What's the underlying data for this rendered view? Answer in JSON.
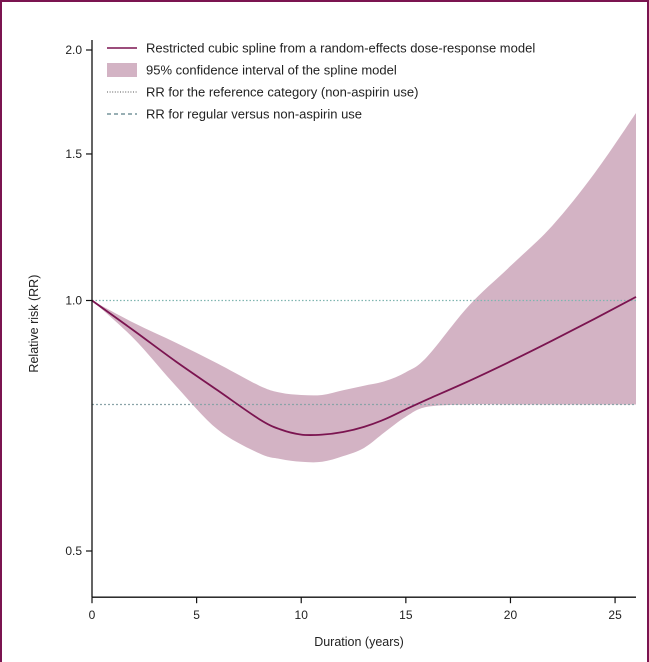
{
  "chart_data": {
    "type": "line",
    "title": "",
    "xlabel": "Duration (years)",
    "ylabel": "Relative risk (RR)",
    "xlim": [
      0,
      26
    ],
    "ylim": [
      0.44,
      2.0
    ],
    "y_scale": "log",
    "x_ticks": [
      0,
      5,
      10,
      15,
      20,
      25
    ],
    "x_tick_labels": [
      "0",
      "5",
      "10",
      "15",
      "20",
      "25"
    ],
    "y_ticks": [
      0.5,
      1.0,
      1.5,
      2.0
    ],
    "y_tick_labels": [
      "0.5",
      "1.0",
      "1.5",
      "2.0"
    ],
    "legend_position": "top-left",
    "legend": [
      "Restricted cubic spline from a random-effects dose-response model",
      "95% confidence interval of the spline model",
      "RR for the reference category (non-aspirin use)",
      "RR for regular versus non-aspirin use"
    ],
    "colors": {
      "spline": "#7b1450",
      "ci_band": "#d3b3c4",
      "reference_line": "#7fb5b0",
      "regular_line": "#8aa3a8",
      "frame": "#7b1450"
    },
    "series": [
      {
        "name": "Restricted cubic spline from a random-effects dose-response model",
        "x": [
          0,
          2,
          4,
          6,
          8,
          9,
          10,
          11,
          12,
          13,
          14,
          15,
          16,
          18,
          20,
          22,
          24,
          26
        ],
        "y": [
          1.0,
          0.92,
          0.845,
          0.78,
          0.72,
          0.7,
          0.69,
          0.69,
          0.695,
          0.705,
          0.72,
          0.74,
          0.76,
          0.8,
          0.845,
          0.895,
          0.95,
          1.01
        ]
      },
      {
        "name": "95% confidence interval of the spline model",
        "x": [
          0,
          2,
          4,
          6,
          8,
          9,
          10,
          11,
          12,
          13,
          14,
          15,
          16,
          18,
          20,
          22,
          24,
          26
        ],
        "lower": [
          1.0,
          0.9,
          0.79,
          0.7,
          0.655,
          0.645,
          0.64,
          0.64,
          0.65,
          0.665,
          0.695,
          0.725,
          0.745,
          0.75,
          0.75,
          0.75,
          0.75,
          0.75
        ],
        "upper": [
          1.0,
          0.94,
          0.89,
          0.84,
          0.79,
          0.775,
          0.77,
          0.77,
          0.78,
          0.79,
          0.8,
          0.82,
          0.855,
          0.985,
          1.1,
          1.23,
          1.42,
          1.68
        ]
      },
      {
        "name": "RR for the reference category (non-aspirin use)",
        "y_constant": 1.0
      },
      {
        "name": "RR for regular versus non-aspirin use",
        "y_constant": 0.75
      }
    ]
  }
}
